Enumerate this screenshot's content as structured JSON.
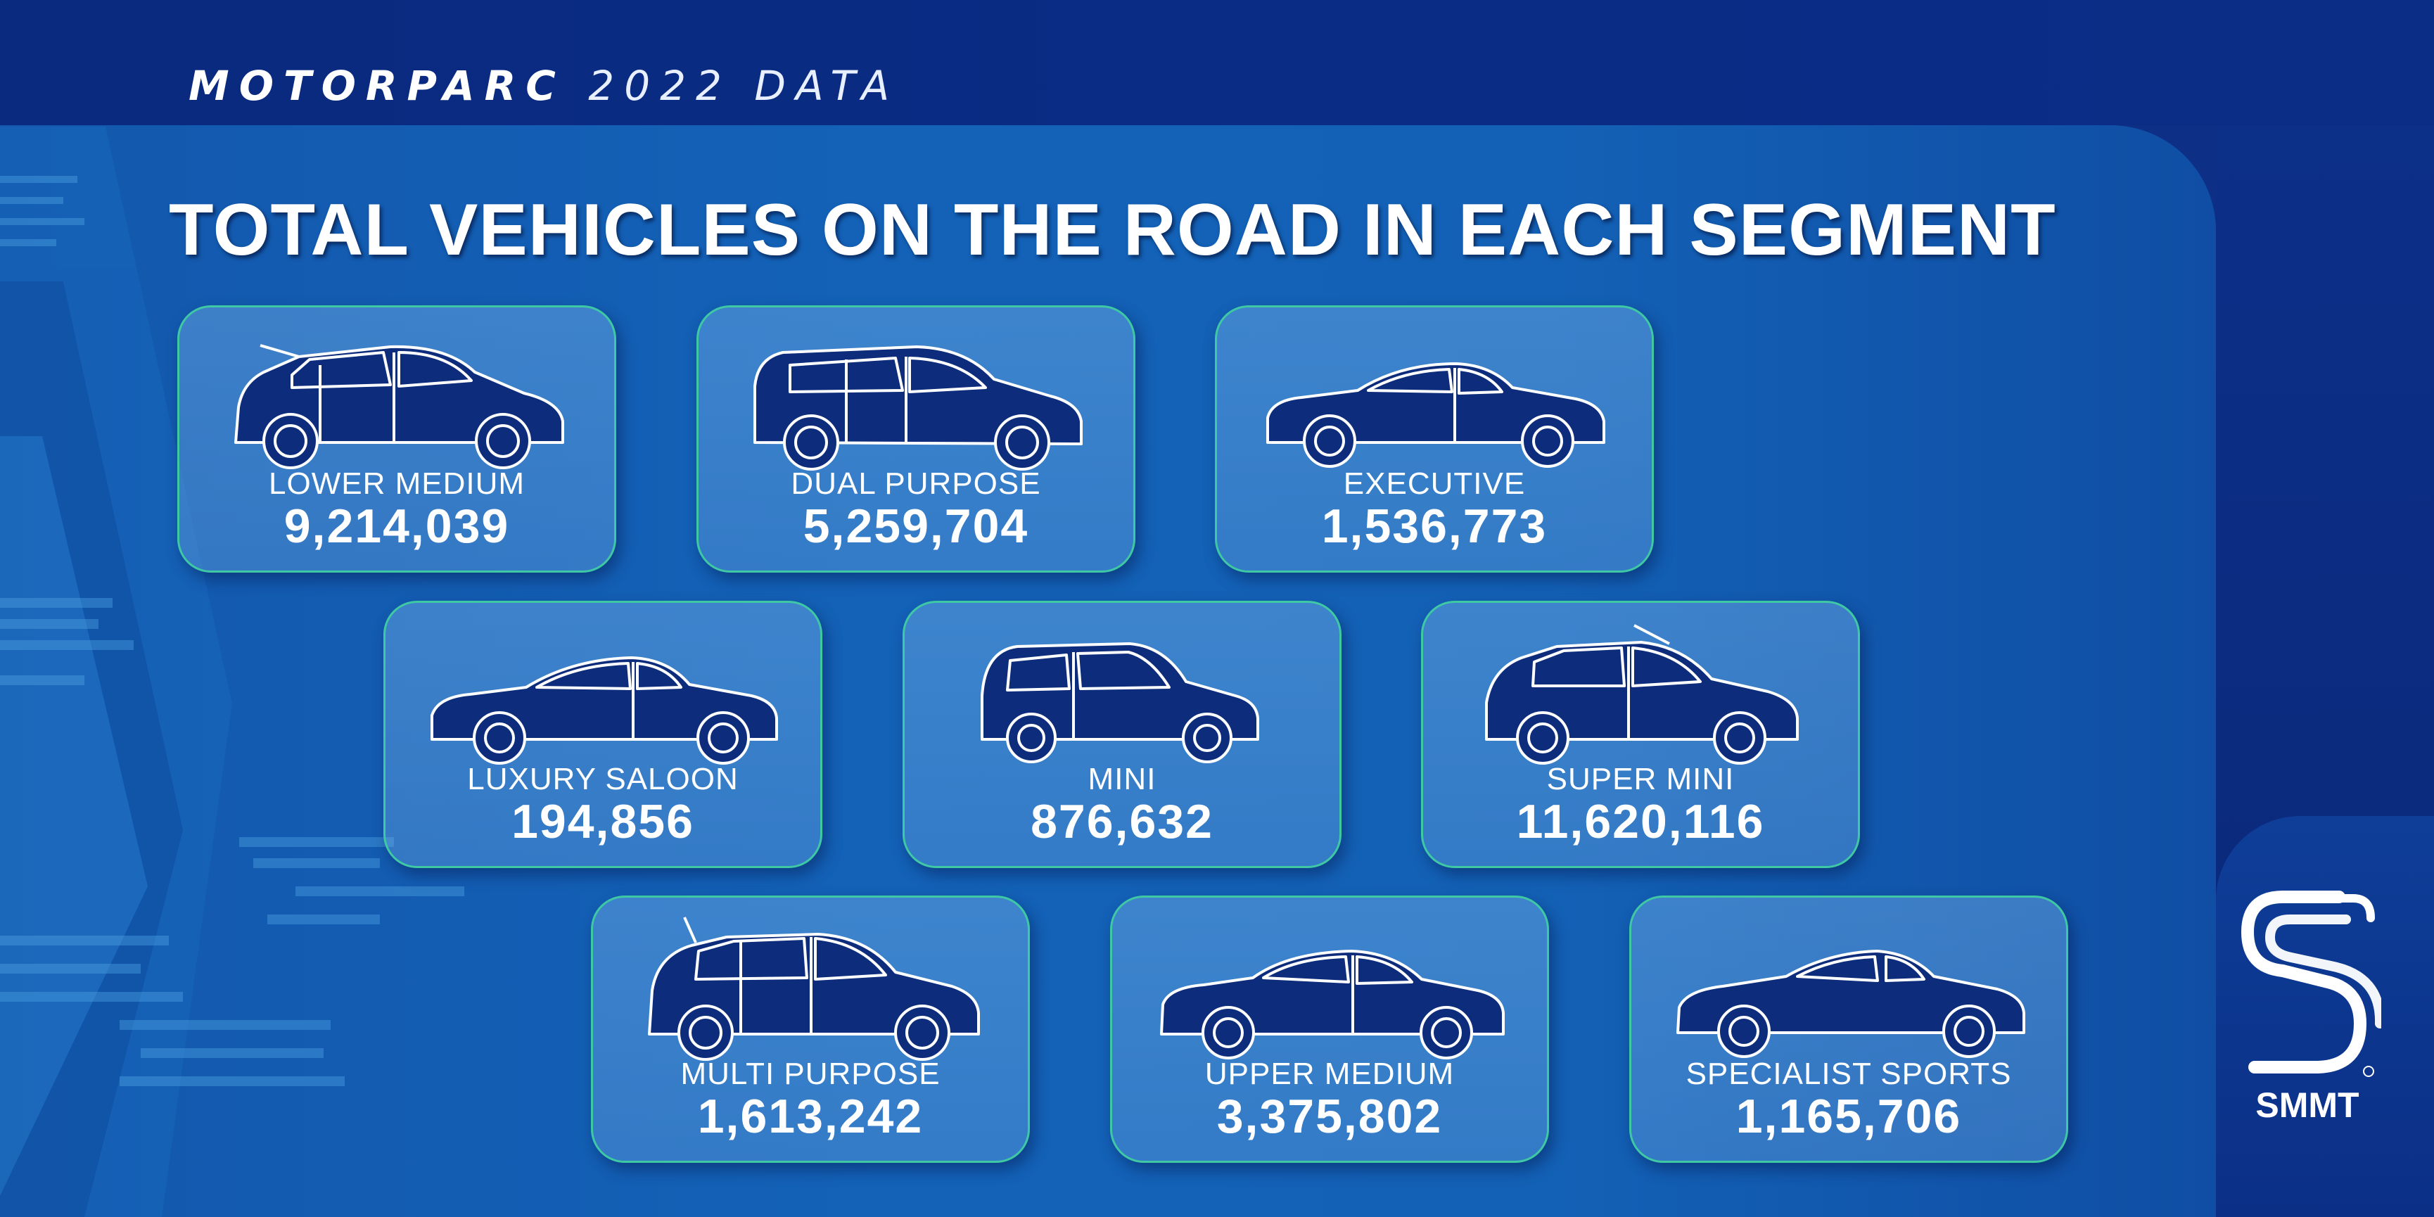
{
  "header": {
    "subtitle_bold": "MOTORPARC",
    "subtitle_rest": "2022 DATA",
    "title": "TOTAL VEHICLES ON THE ROAD IN EACH SEGMENT"
  },
  "colors": {
    "background": "#0d2f86",
    "panel": "#1362b8",
    "card_border": "#3ec8a4",
    "text": "#ffffff"
  },
  "segments": [
    {
      "label": "LOWER MEDIUM",
      "value": "9,214,039",
      "icon": "hatchback-car-icon"
    },
    {
      "label": "DUAL PURPOSE",
      "value": "5,259,704",
      "icon": "suv-car-icon"
    },
    {
      "label": "EXECUTIVE",
      "value": "1,536,773",
      "icon": "executive-saloon-car-icon"
    },
    {
      "label": "LUXURY SALOON",
      "value": "194,856",
      "icon": "luxury-saloon-car-icon"
    },
    {
      "label": "MINI",
      "value": "876,632",
      "icon": "mini-car-icon"
    },
    {
      "label": "SUPER MINI",
      "value": "11,620,116",
      "icon": "supermini-car-icon"
    },
    {
      "label": "MULTI PURPOSE",
      "value": "1,613,242",
      "icon": "mpv-car-icon"
    },
    {
      "label": "UPPER MEDIUM",
      "value": "3,375,802",
      "icon": "upper-medium-saloon-car-icon"
    },
    {
      "label": "SPECIALIST SPORTS",
      "value": "1,165,706",
      "icon": "sports-coupe-car-icon"
    }
  ],
  "logo": {
    "name": "smmt-logo-icon",
    "text": "SMMT"
  }
}
